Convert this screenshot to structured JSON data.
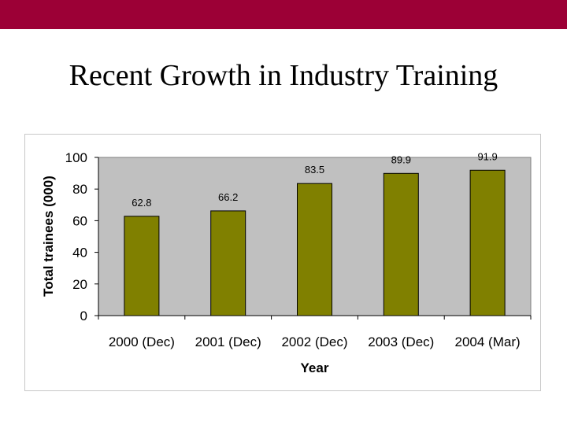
{
  "slide": {
    "title": "Recent Growth in Industry Training"
  },
  "colors": {
    "top_band": "#9c0036",
    "plot_background": "#c0c0c0",
    "bar_fill": "#808000",
    "bar_stroke": "#000000"
  },
  "chart_data": {
    "type": "bar",
    "categories": [
      "2000 (Dec)",
      "2001 (Dec)",
      "2002 (Dec)",
      "2003 (Dec)",
      "2004 (Mar)"
    ],
    "values": [
      62.8,
      66.2,
      83.5,
      89.9,
      91.9
    ],
    "data_labels": [
      "62.8",
      "66.2",
      "83.5",
      "89.9",
      "91.9"
    ],
    "xlabel": "Year",
    "ylabel": "Total trainees (000)",
    "ylim": [
      0,
      100
    ],
    "yticks": [
      0,
      20,
      40,
      60,
      80,
      100
    ],
    "grid": false,
    "legend": "none"
  }
}
